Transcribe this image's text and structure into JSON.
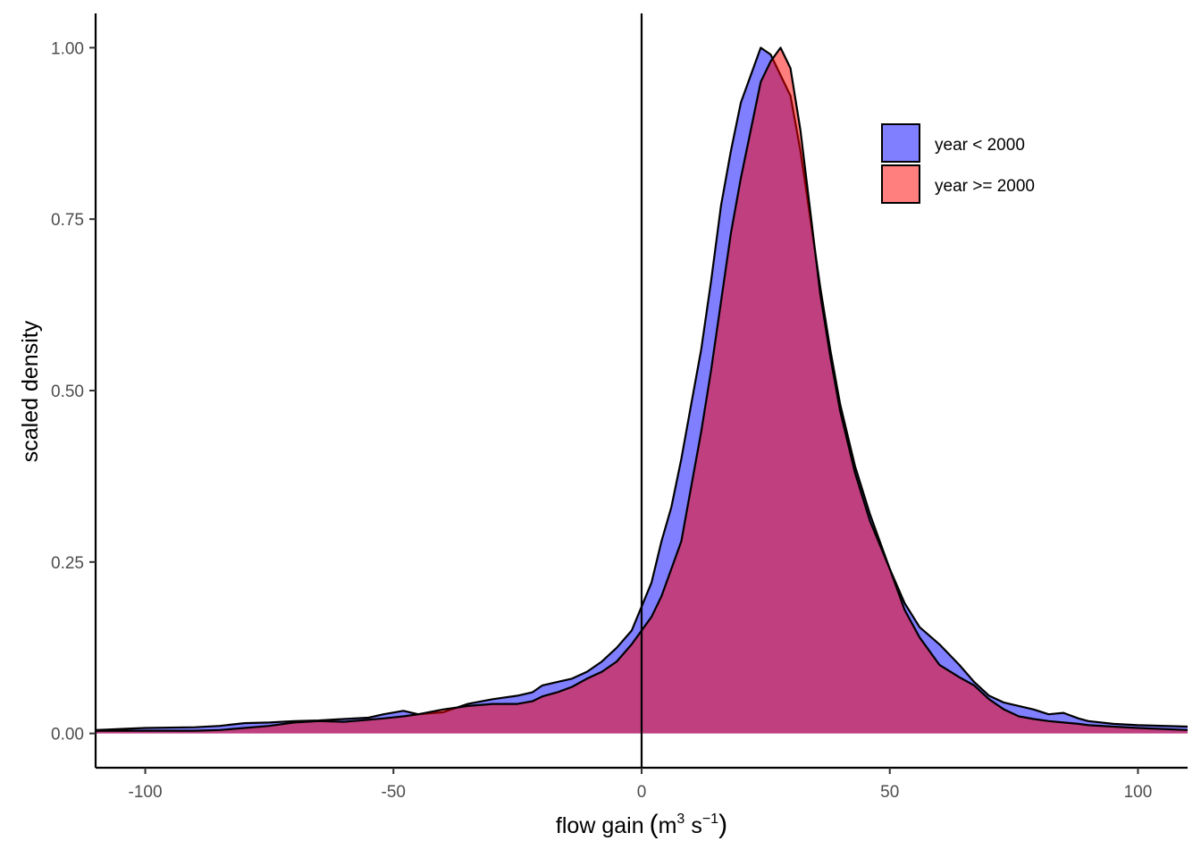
{
  "chart_data": {
    "type": "area",
    "xlabel": "flow gain",
    "xlabel_unit_prefix": "m",
    "xlabel_unit_exp1": "3",
    "xlabel_unit_mid": "s",
    "xlabel_unit_exp2": "−1",
    "ylabel": "scaled density",
    "xlim": [
      -110,
      110
    ],
    "ylim": [
      -0.05,
      1.05
    ],
    "x_ticks": [
      -100,
      -50,
      0,
      50,
      100
    ],
    "x_tick_labels": [
      "-100",
      "-50",
      "0",
      "50",
      "100"
    ],
    "y_ticks": [
      0,
      0.25,
      0.5,
      0.75,
      1
    ],
    "y_tick_labels": [
      "0.00",
      "0.25",
      "0.50",
      "0.75",
      "1.00"
    ],
    "vline_x": 0,
    "legend_position": "top-right",
    "series": [
      {
        "name": "year < 2000",
        "color": "#0000FF",
        "x": [
          -110,
          -100,
          -90,
          -85,
          -80,
          -75,
          -70,
          -65,
          -60,
          -55,
          -52,
          -48,
          -45,
          -40,
          -35,
          -30,
          -25,
          -22,
          -20,
          -17,
          -14,
          -11,
          -8,
          -5,
          -2,
          0,
          2,
          4,
          6,
          8,
          10,
          12,
          14,
          16,
          18,
          20,
          22,
          24,
          26,
          28,
          30,
          32,
          34,
          36,
          38,
          40,
          43,
          46,
          50,
          53,
          56,
          60,
          64,
          67,
          70,
          73,
          76,
          79,
          82,
          85,
          88,
          90,
          95,
          100,
          110
        ],
        "y": [
          0.005,
          0.008,
          0.009,
          0.011,
          0.015,
          0.016,
          0.018,
          0.019,
          0.021,
          0.023,
          0.028,
          0.033,
          0.028,
          0.031,
          0.043,
          0.05,
          0.055,
          0.06,
          0.07,
          0.075,
          0.08,
          0.09,
          0.105,
          0.125,
          0.15,
          0.185,
          0.22,
          0.28,
          0.33,
          0.4,
          0.48,
          0.56,
          0.66,
          0.77,
          0.85,
          0.92,
          0.96,
          1.0,
          0.99,
          0.96,
          0.93,
          0.85,
          0.75,
          0.65,
          0.56,
          0.48,
          0.39,
          0.32,
          0.24,
          0.19,
          0.155,
          0.13,
          0.1,
          0.075,
          0.055,
          0.045,
          0.04,
          0.035,
          0.028,
          0.03,
          0.022,
          0.018,
          0.014,
          0.012,
          0.01
        ]
      },
      {
        "name": "year >= 2000",
        "color": "#FF0000",
        "x": [
          -110,
          -100,
          -90,
          -85,
          -80,
          -75,
          -70,
          -65,
          -60,
          -55,
          -52,
          -48,
          -45,
          -40,
          -35,
          -30,
          -25,
          -22,
          -20,
          -17,
          -14,
          -11,
          -8,
          -5,
          -2,
          0,
          2,
          4,
          6,
          8,
          10,
          12,
          14,
          16,
          18,
          20,
          22,
          24,
          26,
          28,
          30,
          32,
          34,
          36,
          38,
          40,
          43,
          46,
          50,
          53,
          56,
          60,
          64,
          67,
          70,
          73,
          76,
          79,
          82,
          85,
          88,
          90,
          95,
          100,
          110
        ],
        "y": [
          0.004,
          0.004,
          0.004,
          0.005,
          0.008,
          0.011,
          0.016,
          0.018,
          0.017,
          0.02,
          0.022,
          0.025,
          0.028,
          0.035,
          0.04,
          0.043,
          0.043,
          0.047,
          0.054,
          0.06,
          0.068,
          0.08,
          0.09,
          0.105,
          0.13,
          0.15,
          0.17,
          0.2,
          0.24,
          0.28,
          0.36,
          0.44,
          0.53,
          0.63,
          0.73,
          0.81,
          0.88,
          0.95,
          0.98,
          1.0,
          0.97,
          0.88,
          0.76,
          0.64,
          0.55,
          0.47,
          0.38,
          0.31,
          0.24,
          0.18,
          0.14,
          0.1,
          0.082,
          0.07,
          0.05,
          0.035,
          0.025,
          0.021,
          0.018,
          0.016,
          0.014,
          0.012,
          0.01,
          0.008,
          0.005
        ]
      }
    ]
  }
}
